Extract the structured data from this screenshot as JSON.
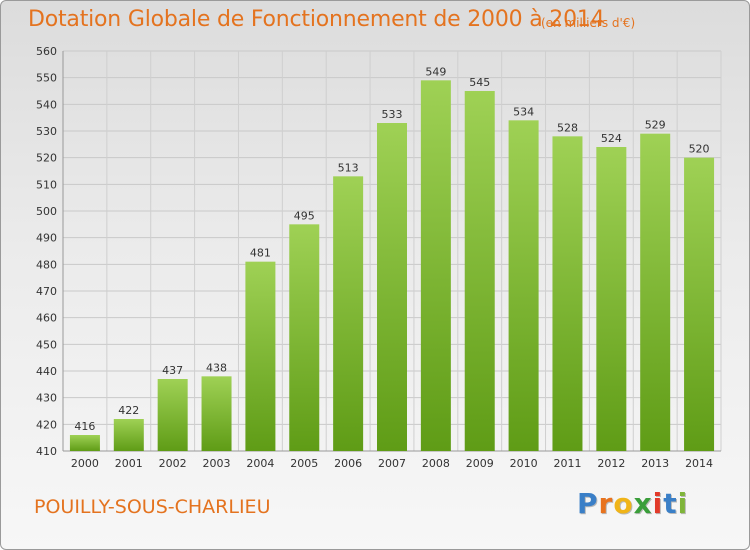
{
  "header": {
    "title": "Dotation Globale de Fonctionnement de 2000 à 2014",
    "subtitle": "(en milliers d'€)"
  },
  "footer": {
    "commune": "POUILLY-SOUS-CHARLIEU",
    "logo_letters": [
      "P",
      "r",
      "o",
      "x",
      "i",
      "t",
      "i"
    ],
    "logo_colors": [
      "#3a7fc7",
      "#e8731e",
      "#f0b418",
      "#3a9e3a",
      "#e23a2a",
      "#3a7fc7",
      "#7fb53a"
    ]
  },
  "chart_data": {
    "type": "bar",
    "categories": [
      "2000",
      "2001",
      "2002",
      "2003",
      "2004",
      "2005",
      "2006",
      "2007",
      "2008",
      "2009",
      "2010",
      "2011",
      "2012",
      "2013",
      "2014"
    ],
    "values": [
      416,
      422,
      437,
      438,
      481,
      495,
      513,
      533,
      549,
      545,
      534,
      528,
      524,
      529,
      520
    ],
    "ylim": [
      410,
      560
    ],
    "yticks": [
      410,
      420,
      430,
      440,
      450,
      460,
      470,
      480,
      490,
      500,
      510,
      520,
      530,
      540,
      550,
      560
    ],
    "grid": true,
    "bar_color_top": "#9fd155",
    "bar_color_bottom": "#5f9c16"
  }
}
